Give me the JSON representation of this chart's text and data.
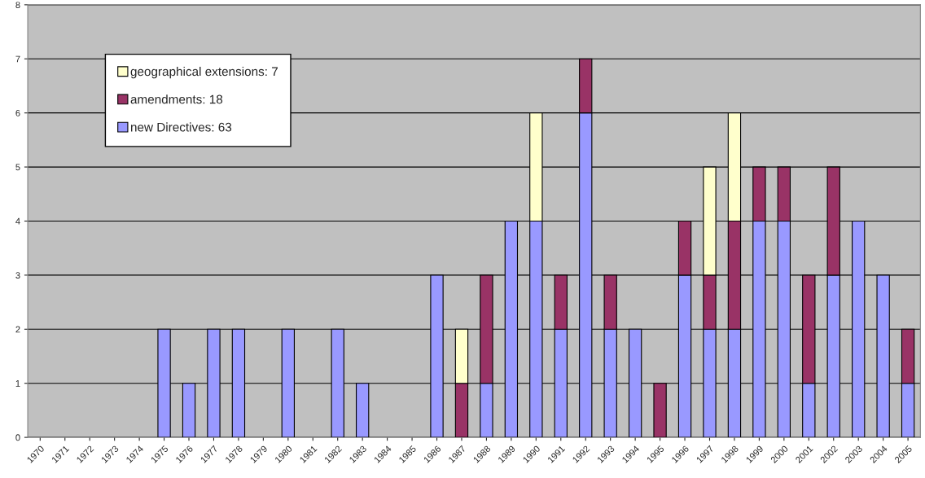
{
  "chart_data": {
    "type": "bar",
    "stacked": true,
    "categories": [
      "1970",
      "1971",
      "1972",
      "1973",
      "1974",
      "1975",
      "1976",
      "1977",
      "1978",
      "1979",
      "1980",
      "1981",
      "1982",
      "1983",
      "1984",
      "1985",
      "1986",
      "1987",
      "1988",
      "1989",
      "1990",
      "1991",
      "1992",
      "1993",
      "1994",
      "1995",
      "1996",
      "1997",
      "1998",
      "1999",
      "2000",
      "2001",
      "2002",
      "2003",
      "2004",
      "2005"
    ],
    "series": [
      {
        "name": "new Directives: 63",
        "color": "#9999ff",
        "values": [
          0,
          0,
          0,
          0,
          0,
          2,
          1,
          2,
          2,
          0,
          2,
          0,
          2,
          1,
          0,
          0,
          3,
          0,
          1,
          4,
          4,
          2,
          6,
          2,
          2,
          0,
          3,
          2,
          2,
          4,
          4,
          1,
          3,
          4,
          3,
          1
        ]
      },
      {
        "name": "amendments: 18",
        "color": "#993366",
        "values": [
          0,
          0,
          0,
          0,
          0,
          0,
          0,
          0,
          0,
          0,
          0,
          0,
          0,
          0,
          0,
          0,
          0,
          1,
          2,
          0,
          0,
          1,
          1,
          1,
          0,
          1,
          1,
          1,
          2,
          1,
          1,
          2,
          2,
          0,
          0,
          1
        ]
      },
      {
        "name": "geographical extensions: 7",
        "color": "#ffffcc",
        "values": [
          0,
          0,
          0,
          0,
          0,
          0,
          0,
          0,
          0,
          0,
          0,
          0,
          0,
          0,
          0,
          0,
          0,
          1,
          0,
          0,
          2,
          0,
          0,
          0,
          0,
          0,
          0,
          2,
          2,
          0,
          0,
          0,
          0,
          0,
          0,
          0
        ]
      }
    ],
    "ylim": [
      0,
      8
    ],
    "yticks": [
      0,
      1,
      2,
      3,
      4,
      5,
      6,
      7,
      8
    ],
    "grid": "y",
    "legend": "top left"
  }
}
